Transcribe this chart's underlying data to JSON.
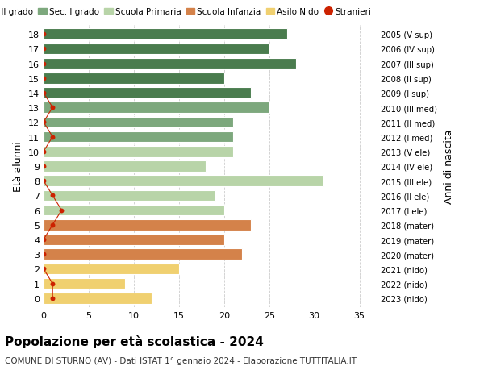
{
  "ages": [
    18,
    17,
    16,
    15,
    14,
    13,
    12,
    11,
    10,
    9,
    8,
    7,
    6,
    5,
    4,
    3,
    2,
    1,
    0
  ],
  "years": [
    "2005 (V sup)",
    "2006 (IV sup)",
    "2007 (III sup)",
    "2008 (II sup)",
    "2009 (I sup)",
    "2010 (III med)",
    "2011 (II med)",
    "2012 (I med)",
    "2013 (V ele)",
    "2014 (IV ele)",
    "2015 (III ele)",
    "2016 (II ele)",
    "2017 (I ele)",
    "2018 (mater)",
    "2019 (mater)",
    "2020 (mater)",
    "2021 (nido)",
    "2022 (nido)",
    "2023 (nido)"
  ],
  "values": [
    27,
    25,
    28,
    20,
    23,
    25,
    21,
    21,
    21,
    18,
    31,
    19,
    20,
    23,
    20,
    22,
    15,
    9,
    12
  ],
  "stranieri_values": [
    0,
    0,
    0,
    0,
    0,
    1,
    0,
    1,
    0,
    0,
    0,
    1,
    2,
    1,
    0,
    0,
    0,
    1,
    1
  ],
  "bar_colors": [
    "#4a7c4e",
    "#4a7c4e",
    "#4a7c4e",
    "#4a7c4e",
    "#4a7c4e",
    "#7da87d",
    "#7da87d",
    "#7da87d",
    "#b8d4a8",
    "#b8d4a8",
    "#b8d4a8",
    "#b8d4a8",
    "#b8d4a8",
    "#d4824a",
    "#d4824a",
    "#d4824a",
    "#f0d070",
    "#f0d070",
    "#f0d070"
  ],
  "legend_labels": [
    "Sec. II grado",
    "Sec. I grado",
    "Scuola Primaria",
    "Scuola Infanzia",
    "Asilo Nido",
    "Stranieri"
  ],
  "legend_colors": [
    "#4a7c4e",
    "#7da87d",
    "#b8d4a8",
    "#d4824a",
    "#f0d070",
    "#cc2200"
  ],
  "title": "Popolazione per età scolastica - 2024",
  "subtitle": "COMUNE DI STURNO (AV) - Dati ISTAT 1° gennaio 2024 - Elaborazione TUTTITALIA.IT",
  "ylabel_left": "Età alunni",
  "ylabel_right": "Anni di nascita",
  "xlim": [
    0,
    37
  ],
  "xticks": [
    0,
    5,
    10,
    15,
    20,
    25,
    30,
    35
  ],
  "grid_color": "#cccccc",
  "bar_height": 0.75,
  "background_color": "#ffffff",
  "stranieri_line_color": "#cc2200",
  "stranieri_dot_color": "#cc2200"
}
